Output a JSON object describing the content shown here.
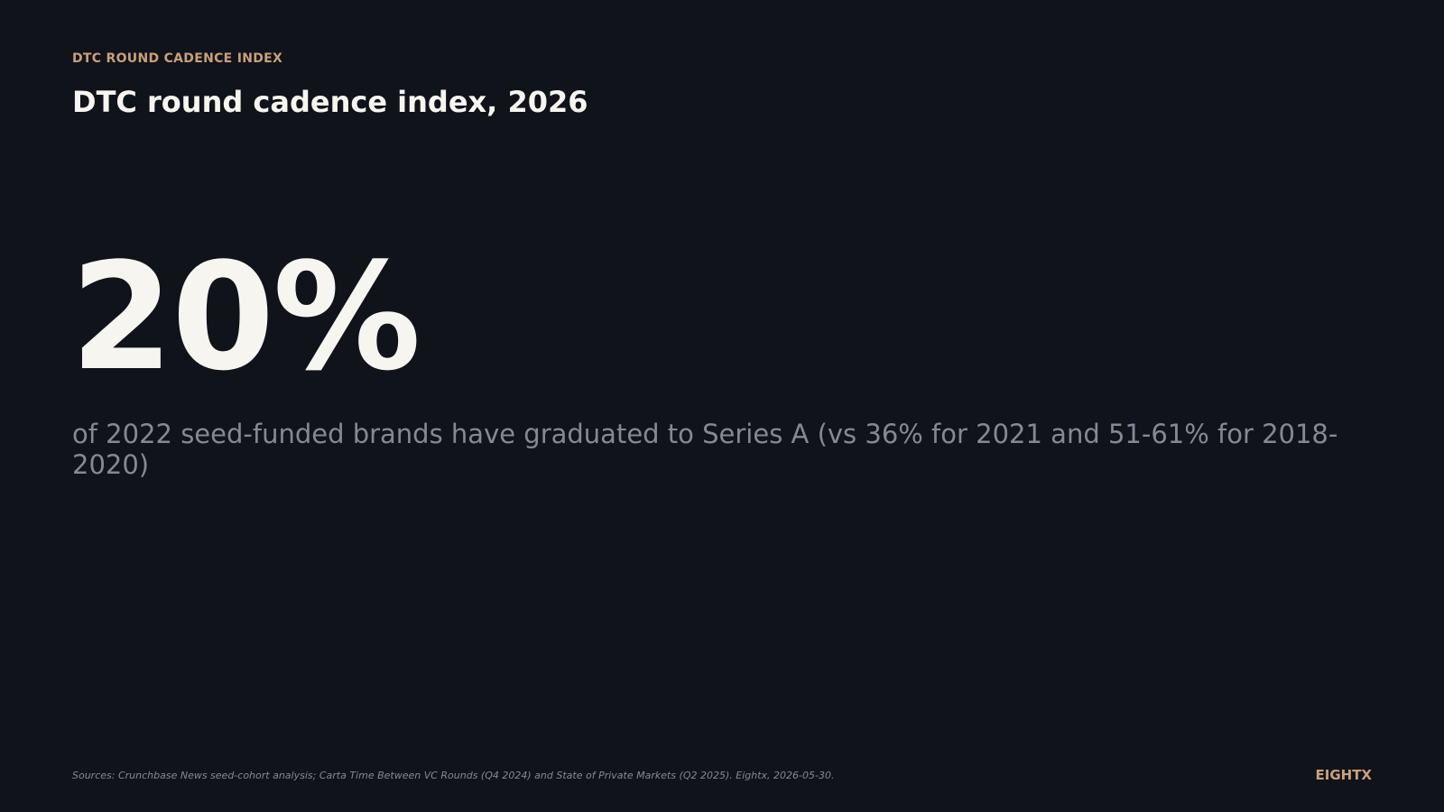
{
  "header": {
    "kicker": "DTC ROUND CADENCE INDEX",
    "title": "DTC round cadence index, 2026"
  },
  "stat": {
    "value": "20%",
    "caption": "of 2022 seed-funded brands have graduated to Series A (vs 36% for 2021 and 51-61% for 2018-2020)"
  },
  "footer": {
    "source": "Sources: Crunchbase News seed-cohort analysis; Carta Time Between VC Rounds (Q4 2024) and State of Private Markets (Q2 2025). Eightx, 2026-05-30.",
    "brand": "EIGHTX"
  }
}
